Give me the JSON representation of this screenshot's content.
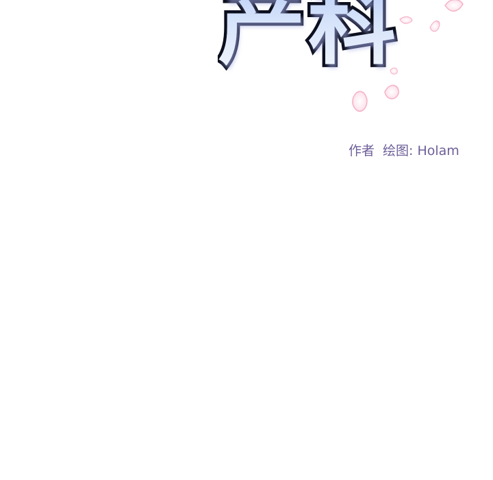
{
  "title": {
    "text": "产科",
    "fill_color": "#d6e3fa",
    "outline_color": "#0c0f1e"
  },
  "credits": {
    "author_label": "作者",
    "artist_label": "绘图: Holam",
    "color": "#6e5f98"
  },
  "decoration": {
    "petal_color": "#f7b8c8"
  }
}
